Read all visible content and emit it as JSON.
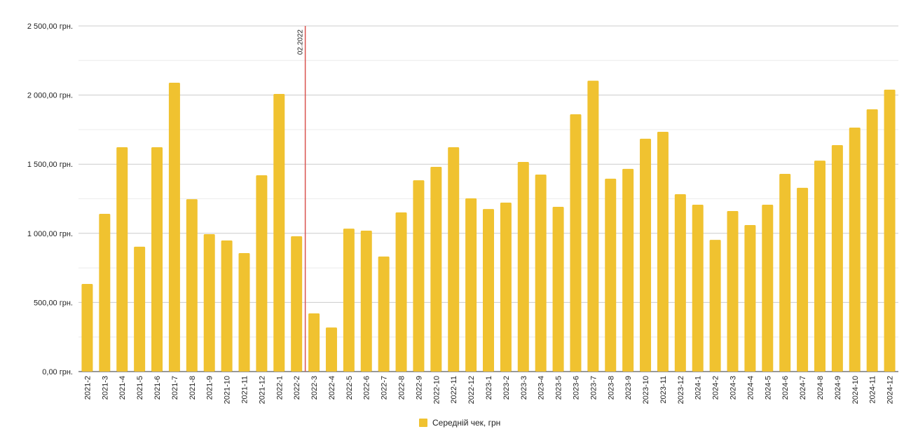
{
  "chart_data": {
    "type": "bar",
    "categories": [
      "2021-2",
      "2021-3",
      "2021-4",
      "2021-5",
      "2021-6",
      "2021-7",
      "2021-8",
      "2021-9",
      "2021-10",
      "2021-11",
      "2021-12",
      "2022-1",
      "2022-2",
      "2022-3",
      "2022-4",
      "2022-5",
      "2022-6",
      "2022-7",
      "2022-8",
      "2022-9",
      "2022-10",
      "2022-11",
      "2022-12",
      "2023-1",
      "2023-2",
      "2023-3",
      "2023-4",
      "2023-5",
      "2023-6",
      "2023-7",
      "2023-8",
      "2023-9",
      "2023-10",
      "2023-11",
      "2023-12",
      "2024-1",
      "2024-2",
      "2024-3",
      "2024-4",
      "2024-5",
      "2024-6",
      "2024-7",
      "2024-8",
      "2024-9",
      "2024-10",
      "2024-11",
      "2024-12"
    ],
    "series": [
      {
        "name": "Середній чек, грн",
        "color": "#f0c230",
        "values": [
          634,
          1141,
          1623,
          903,
          1623,
          2089,
          1247,
          994,
          948,
          857,
          1420,
          2008,
          979,
          421,
          319,
          1034,
          1019,
          832,
          1151,
          1384,
          1481,
          1623,
          1253,
          1176,
          1222,
          1516,
          1425,
          1192,
          1861,
          2104,
          1395,
          1466,
          1684,
          1734,
          1283,
          1207,
          953,
          1161,
          1060,
          1207,
          1430,
          1329,
          1526,
          1638,
          1765,
          1897,
          2039
        ]
      }
    ],
    "ylim": [
      0,
      2500
    ],
    "yticks": [
      {
        "value": 0,
        "label": "0,00 грн."
      },
      {
        "value": 500,
        "label": "500,00 грн."
      },
      {
        "value": 1000,
        "label": "1 000,00 грн."
      },
      {
        "value": 1500,
        "label": "1 500,00 грн."
      },
      {
        "value": 2000,
        "label": "2 000,00 грн."
      },
      {
        "value": 2500,
        "label": "2 500,00 грн."
      }
    ],
    "minor_yticks": [
      250,
      750,
      1250,
      1750,
      2250
    ],
    "grid": true,
    "annotation": {
      "text": "02.2022",
      "after": "2022-2",
      "color": "#d9534f"
    },
    "legend": "bottom"
  }
}
